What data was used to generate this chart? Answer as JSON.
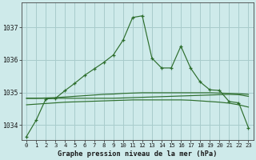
{
  "title": "Graphe pression niveau de la mer (hPa)",
  "background_color": "#ceeaea",
  "grid_color": "#a8cccc",
  "line_color": "#2d6e2d",
  "xlim": [
    -0.5,
    23.5
  ],
  "ylim": [
    1033.55,
    1037.75
  ],
  "yticks": [
    1034,
    1035,
    1036,
    1037
  ],
  "xticks": [
    0,
    1,
    2,
    3,
    4,
    5,
    6,
    7,
    8,
    9,
    10,
    11,
    12,
    13,
    14,
    15,
    16,
    17,
    18,
    19,
    20,
    21,
    22,
    23
  ],
  "series1": [
    1033.65,
    1034.15,
    1034.8,
    1034.82,
    1035.06,
    1035.28,
    1035.52,
    1035.72,
    1035.92,
    1036.15,
    1036.6,
    1037.3,
    1037.35,
    1036.05,
    1035.75,
    1035.75,
    1036.42,
    1035.75,
    1035.32,
    1035.08,
    1035.06,
    1034.72,
    1034.68,
    1033.92
  ],
  "series2": [
    1034.82,
    1034.82,
    1034.82,
    1034.82,
    1034.82,
    1034.82,
    1034.82,
    1034.82,
    1034.82,
    1034.82,
    1034.83,
    1034.84,
    1034.85,
    1034.86,
    1034.87,
    1034.88,
    1034.89,
    1034.9,
    1034.91,
    1034.92,
    1034.93,
    1034.94,
    1034.93,
    1034.88
  ],
  "series3": [
    1034.82,
    1034.82,
    1034.83,
    1034.84,
    1034.86,
    1034.88,
    1034.9,
    1034.92,
    1034.94,
    1034.95,
    1034.97,
    1034.98,
    1034.99,
    1034.99,
    1034.99,
    1034.99,
    1034.99,
    1034.99,
    1034.99,
    1034.99,
    1034.98,
    1034.97,
    1034.96,
    1034.94
  ],
  "series4": [
    1034.62,
    1034.64,
    1034.66,
    1034.68,
    1034.7,
    1034.71,
    1034.72,
    1034.73,
    1034.74,
    1034.75,
    1034.76,
    1034.77,
    1034.77,
    1034.77,
    1034.77,
    1034.77,
    1034.77,
    1034.76,
    1034.74,
    1034.72,
    1034.7,
    1034.67,
    1034.62,
    1034.55
  ]
}
